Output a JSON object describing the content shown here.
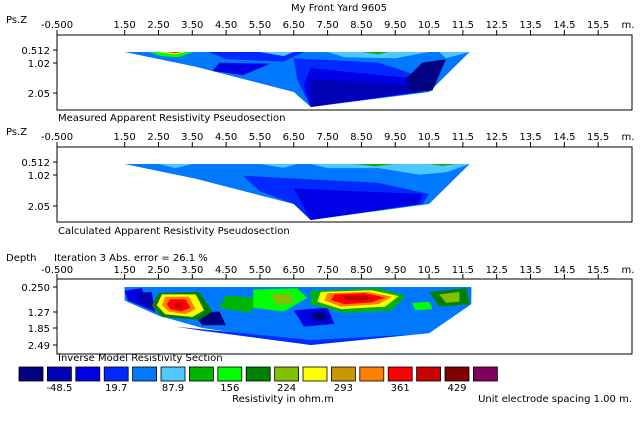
{
  "title": "My Front Yard 9605",
  "x_unit": "m.",
  "x_ticks": [
    "-0.500",
    "1.50",
    "2.50",
    "3.50",
    "4.50",
    "5.50",
    "6.50",
    "7.50",
    "8.50",
    "9.50",
    "10.5",
    "11.5",
    "12.5",
    "13.5",
    "14.5",
    "15.5"
  ],
  "footer": {
    "unit_label": "Resistivity in ohm.m",
    "electrode_spacing": "Unit electrode spacing 1.00 m."
  },
  "colors": {
    "frame": "#000000",
    "scale": [
      "#000080",
      "#0000b4",
      "#0000e6",
      "#0028ff",
      "#0078ff",
      "#50c8ff",
      "#00b400",
      "#00ff00",
      "#008000",
      "#80c000",
      "#ffff00",
      "#c89600",
      "#ff8000",
      "#ff0000",
      "#c80000",
      "#800000",
      "#800060"
    ]
  },
  "chart_data": [
    {
      "type": "heatmap",
      "panel": "measured",
      "caption": "Measured Apparent Resistivity Pseudosection",
      "y_axis_label": "Ps.Z",
      "y_ticks": [
        "0.512",
        "1.02",
        "2.05"
      ],
      "x_range": [
        -0.5,
        16.5
      ],
      "regions": [
        {
          "color": "#0078ff",
          "points": [
            [
              1.5,
              0.51
            ],
            [
              11.7,
              0.51
            ],
            [
              10.5,
              2.05
            ],
            [
              7.0,
              2.3
            ],
            [
              6.5,
              2.05
            ],
            [
              3.6,
              1.15
            ]
          ]
        },
        {
          "color": "#0028ff",
          "points": [
            [
              4.0,
              0.51
            ],
            [
              6.8,
              0.51
            ],
            [
              6.2,
              0.95
            ],
            [
              4.5,
              0.85
            ]
          ]
        },
        {
          "color": "#0028ff",
          "points": [
            [
              6.5,
              0.8
            ],
            [
              9.0,
              1.0
            ],
            [
              10.5,
              1.6
            ],
            [
              10.3,
              2.05
            ],
            [
              7.0,
              2.3
            ],
            [
              6.6,
              1.6
            ]
          ]
        },
        {
          "color": "#0000e6",
          "points": [
            [
              7.0,
              1.2
            ],
            [
              10.3,
              1.6
            ],
            [
              10.2,
              2.05
            ],
            [
              7.0,
              2.3
            ],
            [
              6.8,
              1.8
            ]
          ]
        },
        {
          "color": "#0000e6",
          "points": [
            [
              4.3,
              1.0
            ],
            [
              5.8,
              1.05
            ],
            [
              5.0,
              1.45
            ],
            [
              4.1,
              1.3
            ]
          ]
        },
        {
          "color": "#0000b4",
          "points": [
            [
              7.0,
              1.6
            ],
            [
              10.0,
              1.8
            ],
            [
              10.0,
              2.05
            ],
            [
              7.0,
              2.3
            ]
          ]
        },
        {
          "color": "#000080",
          "points": [
            [
              10.3,
              1.0
            ],
            [
              11.0,
              0.85
            ],
            [
              10.6,
              2.0
            ],
            [
              10.0,
              2.05
            ],
            [
              9.8,
              1.6
            ]
          ]
        },
        {
          "color": "#50c8ff",
          "points": [
            [
              7.5,
              0.51
            ],
            [
              10.5,
              0.51
            ],
            [
              9.5,
              0.8
            ],
            [
              8.0,
              0.75
            ]
          ]
        },
        {
          "color": "#50c8ff",
          "points": [
            [
              10.8,
              0.51
            ],
            [
              11.7,
              0.51
            ],
            [
              11.0,
              0.8
            ]
          ]
        },
        {
          "color": "#50c8ff",
          "points": [
            [
              5.5,
              0.51
            ],
            [
              6.5,
              0.51
            ],
            [
              6.2,
              0.7
            ]
          ]
        },
        {
          "color": "#00b400",
          "points": [
            [
              8.5,
              0.51
            ],
            [
              9.3,
              0.51
            ],
            [
              9.0,
              0.62
            ]
          ]
        },
        {
          "color": "#00ff00",
          "points": [
            [
              2.2,
              0.51
            ],
            [
              3.5,
              0.51
            ],
            [
              3.1,
              0.75
            ],
            [
              2.6,
              0.7
            ]
          ]
        },
        {
          "color": "#ffff00",
          "points": [
            [
              2.5,
              0.51
            ],
            [
              3.3,
              0.51
            ],
            [
              3.0,
              0.62
            ]
          ]
        },
        {
          "color": "#ff8000",
          "points": [
            [
              2.7,
              0.51
            ],
            [
              3.2,
              0.51
            ],
            [
              3.0,
              0.58
            ]
          ]
        },
        {
          "color": "#ff0000",
          "points": [
            [
              2.85,
              0.51
            ],
            [
              3.1,
              0.51
            ],
            [
              3.0,
              0.55
            ]
          ]
        }
      ]
    },
    {
      "type": "heatmap",
      "panel": "calculated",
      "caption": "Calculated Apparent Resistivity Pseudosection",
      "y_axis_label": "Ps.Z",
      "y_ticks": [
        "0.512",
        "1.02",
        "2.05"
      ],
      "x_range": [
        -0.5,
        16.5
      ],
      "regions": [
        {
          "color": "#0078ff",
          "points": [
            [
              1.5,
              0.51
            ],
            [
              11.7,
              0.51
            ],
            [
              10.5,
              2.05
            ],
            [
              7.0,
              2.3
            ],
            [
              6.5,
              2.05
            ],
            [
              3.6,
              1.15
            ]
          ]
        },
        {
          "color": "#0028ff",
          "points": [
            [
              5.0,
              1.05
            ],
            [
              9.0,
              1.3
            ],
            [
              10.5,
              1.7
            ],
            [
              10.3,
              2.05
            ],
            [
              7.0,
              2.3
            ],
            [
              6.5,
              2.05
            ],
            [
              5.5,
              1.6
            ]
          ]
        },
        {
          "color": "#0000e6",
          "points": [
            [
              6.5,
              1.5
            ],
            [
              10.3,
              1.7
            ],
            [
              10.2,
              2.05
            ],
            [
              7.0,
              2.3
            ]
          ]
        },
        {
          "color": "#50c8ff",
          "points": [
            [
              7.0,
              0.51
            ],
            [
              11.7,
              0.51
            ],
            [
              11.0,
              0.9
            ],
            [
              10.2,
              1.0
            ],
            [
              9.0,
              0.7
            ],
            [
              7.5,
              0.7
            ]
          ]
        },
        {
          "color": "#50c8ff",
          "points": [
            [
              2.5,
              0.51
            ],
            [
              3.5,
              0.51
            ],
            [
              3.0,
              0.7
            ]
          ]
        },
        {
          "color": "#50c8ff",
          "points": [
            [
              5.5,
              0.51
            ],
            [
              6.6,
              0.51
            ],
            [
              6.2,
              0.68
            ]
          ]
        },
        {
          "color": "#00b400",
          "points": [
            [
              8.3,
              0.51
            ],
            [
              9.5,
              0.51
            ],
            [
              8.9,
              0.62
            ]
          ]
        },
        {
          "color": "#00b400",
          "points": [
            [
              10.5,
              0.51
            ],
            [
              11.3,
              0.51
            ],
            [
              10.9,
              0.6
            ]
          ]
        }
      ]
    },
    {
      "type": "heatmap",
      "panel": "inverse",
      "caption": "Inverse Model Resistivity Section",
      "subtitle": "Iteration 3 Abs. error = 26.1 %",
      "y_axis_label": "Depth",
      "y_ticks": [
        "0.250",
        "1.27",
        "1.85",
        "2.49"
      ],
      "x_range": [
        -0.5,
        16.5
      ],
      "regions": [
        {
          "color": "#0078ff",
          "points": [
            [
              1.5,
              0.25
            ],
            [
              11.75,
              0.25
            ],
            [
              11.75,
              0.95
            ],
            [
              10.5,
              2.05
            ],
            [
              7.0,
              2.49
            ],
            [
              6.2,
              2.3
            ],
            [
              3.8,
              1.85
            ],
            [
              2.5,
              1.4
            ],
            [
              1.5,
              0.8
            ]
          ]
        },
        {
          "color": "#0028ff",
          "points": [
            [
              3.0,
              1.8
            ],
            [
              7.0,
              2.3
            ],
            [
              10.0,
              2.1
            ],
            [
              7.0,
              2.49
            ],
            [
              3.8,
              1.95
            ]
          ]
        },
        {
          "color": "#0000e6",
          "points": [
            [
              1.5,
              0.4
            ],
            [
              2.0,
              0.3
            ],
            [
              2.3,
              1.2
            ],
            [
              1.6,
              0.8
            ]
          ]
        },
        {
          "color": "#0000b4",
          "points": [
            [
              1.8,
              0.5
            ],
            [
              2.3,
              0.45
            ],
            [
              2.4,
              1.3
            ],
            [
              2.0,
              0.9
            ]
          ]
        },
        {
          "color": "#000080",
          "points": [
            [
              3.5,
              1.3
            ],
            [
              4.3,
              1.25
            ],
            [
              4.5,
              1.75
            ],
            [
              3.8,
              1.75
            ]
          ]
        },
        {
          "color": "#0000e6",
          "points": [
            [
              6.5,
              1.2
            ],
            [
              7.5,
              1.1
            ],
            [
              7.7,
              1.7
            ],
            [
              6.8,
              1.8
            ]
          ]
        },
        {
          "color": "#000080",
          "points": [
            [
              7.0,
              1.3
            ],
            [
              7.4,
              1.25
            ],
            [
              7.5,
              1.6
            ],
            [
              7.1,
              1.6
            ]
          ]
        },
        {
          "color": "#00b400",
          "points": [
            [
              4.5,
              0.6
            ],
            [
              5.5,
              0.7
            ],
            [
              5.2,
              1.3
            ],
            [
              4.3,
              1.1
            ]
          ]
        },
        {
          "color": "#00ff00",
          "points": [
            [
              5.3,
              0.35
            ],
            [
              6.6,
              0.3
            ],
            [
              6.9,
              0.7
            ],
            [
              6.2,
              1.25
            ],
            [
              5.3,
              1.1
            ]
          ]
        },
        {
          "color": "#80c000",
          "points": [
            [
              5.8,
              0.55
            ],
            [
              6.4,
              0.5
            ],
            [
              6.5,
              0.9
            ],
            [
              6.0,
              1.0
            ]
          ]
        },
        {
          "color": "#008000",
          "points": [
            [
              10.5,
              0.45
            ],
            [
              11.6,
              0.3
            ],
            [
              11.7,
              0.95
            ],
            [
              10.8,
              1.05
            ]
          ]
        },
        {
          "color": "#80c000",
          "points": [
            [
              10.8,
              0.55
            ],
            [
              11.4,
              0.45
            ],
            [
              11.4,
              0.85
            ],
            [
              11.0,
              0.9
            ]
          ]
        },
        {
          "color": "#008000",
          "points": [
            [
              2.5,
              0.5
            ],
            [
              3.7,
              0.45
            ],
            [
              4.1,
              1.25
            ],
            [
              3.7,
              1.55
            ],
            [
              2.6,
              1.45
            ],
            [
              2.3,
              1.0
            ]
          ]
        },
        {
          "color": "#ffff00",
          "points": [
            [
              2.6,
              0.55
            ],
            [
              3.6,
              0.55
            ],
            [
              3.85,
              1.2
            ],
            [
              3.5,
              1.45
            ],
            [
              2.7,
              1.35
            ],
            [
              2.45,
              1.0
            ]
          ]
        },
        {
          "color": "#ff8000",
          "points": [
            [
              2.7,
              0.65
            ],
            [
              3.4,
              0.65
            ],
            [
              3.6,
              1.15
            ],
            [
              3.3,
              1.35
            ],
            [
              2.8,
              1.25
            ],
            [
              2.6,
              1.0
            ]
          ]
        },
        {
          "color": "#ff0000",
          "points": [
            [
              2.85,
              0.75
            ],
            [
              3.3,
              0.75
            ],
            [
              3.45,
              1.1
            ],
            [
              3.15,
              1.25
            ],
            [
              2.85,
              1.15
            ],
            [
              2.75,
              0.95
            ]
          ]
        },
        {
          "color": "#c80000",
          "points": [
            [
              2.95,
              0.9
            ],
            [
              3.2,
              0.9
            ],
            [
              3.25,
              1.1
            ],
            [
              3.0,
              1.12
            ]
          ]
        },
        {
          "color": "#00b400",
          "points": [
            [
              7.0,
              0.4
            ],
            [
              9.0,
              0.3
            ],
            [
              9.8,
              0.6
            ],
            [
              9.4,
              1.2
            ],
            [
              8.0,
              1.3
            ],
            [
              7.0,
              0.95
            ]
          ]
        },
        {
          "color": "#ffff00",
          "points": [
            [
              7.3,
              0.45
            ],
            [
              8.8,
              0.38
            ],
            [
              9.6,
              0.62
            ],
            [
              9.2,
              1.05
            ],
            [
              7.9,
              1.15
            ],
            [
              7.2,
              0.85
            ]
          ]
        },
        {
          "color": "#ff8000",
          "points": [
            [
              7.5,
              0.5
            ],
            [
              8.7,
              0.45
            ],
            [
              9.4,
              0.65
            ],
            [
              9.0,
              0.95
            ],
            [
              7.9,
              1.05
            ],
            [
              7.4,
              0.8
            ]
          ]
        },
        {
          "color": "#ff0000",
          "points": [
            [
              7.7,
              0.55
            ],
            [
              8.6,
              0.5
            ],
            [
              9.2,
              0.68
            ],
            [
              8.8,
              0.88
            ],
            [
              8.0,
              0.95
            ],
            [
              7.6,
              0.78
            ]
          ]
        },
        {
          "color": "#c80000",
          "points": [
            [
              8.0,
              0.62
            ],
            [
              8.6,
              0.6
            ],
            [
              8.9,
              0.72
            ],
            [
              8.4,
              0.82
            ],
            [
              8.0,
              0.8
            ]
          ]
        },
        {
          "color": "#00ff00",
          "points": [
            [
              10.0,
              0.9
            ],
            [
              10.5,
              0.85
            ],
            [
              10.6,
              1.15
            ],
            [
              10.1,
              1.2
            ]
          ]
        }
      ]
    },
    {
      "type": "heatmap",
      "panel": "color-scale",
      "title": "Resistivity in ohm.m",
      "labels": [
        "-48.5",
        "19.7",
        "87.9",
        "156",
        "224",
        "293",
        "361",
        "429"
      ]
    }
  ]
}
